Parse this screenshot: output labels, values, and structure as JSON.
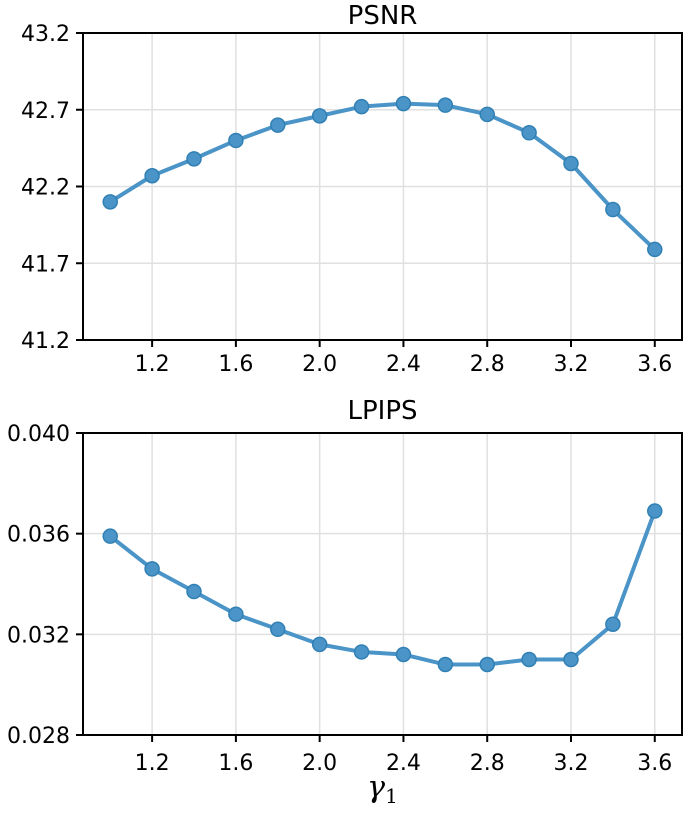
{
  "style": {
    "line_color": "#4a94c8",
    "marker_edge_color": "#3180b4",
    "grid_color": "#e0e0e0",
    "axis_color": "#000000",
    "text_color": "#000000",
    "background": "#ffffff"
  },
  "chart_data": [
    {
      "type": "line",
      "title": "PSNR",
      "x": [
        1.0,
        1.2,
        1.4,
        1.6,
        1.8,
        2.0,
        2.2,
        2.4,
        2.6,
        2.8,
        3.0,
        3.2,
        3.4,
        3.6
      ],
      "values": [
        42.1,
        42.27,
        42.38,
        42.5,
        42.6,
        42.66,
        42.72,
        42.74,
        42.73,
        42.67,
        42.55,
        42.35,
        42.05,
        41.79
      ],
      "xlabel": "",
      "ylabel": "",
      "xlim": [
        0.87,
        3.73
      ],
      "ylim": [
        41.2,
        43.2
      ],
      "xtick_values": [
        1.2,
        1.6,
        2.0,
        2.4,
        2.8,
        3.2,
        3.6
      ],
      "xtick_labels": [
        "1.2",
        "1.6",
        "2.0",
        "2.4",
        "2.8",
        "3.2",
        "3.6"
      ],
      "ytick_values": [
        41.2,
        41.7,
        42.2,
        42.7,
        43.2
      ],
      "ytick_labels": [
        "41.2",
        "41.7",
        "42.2",
        "42.7",
        "43.2"
      ],
      "grid": true,
      "legend": "none",
      "marker": "circle"
    },
    {
      "type": "line",
      "title": "LPIPS",
      "x": [
        1.0,
        1.2,
        1.4,
        1.6,
        1.8,
        2.0,
        2.2,
        2.4,
        2.6,
        2.8,
        3.0,
        3.2,
        3.4,
        3.6
      ],
      "values": [
        0.0359,
        0.0346,
        0.0337,
        0.0328,
        0.0322,
        0.0316,
        0.0313,
        0.0312,
        0.0308,
        0.0308,
        0.031,
        0.031,
        0.0324,
        0.0369
      ],
      "xlabel_symbol": "γ",
      "xlabel_subscript": "1",
      "ylabel": "",
      "xlim": [
        0.87,
        3.73
      ],
      "ylim": [
        0.028,
        0.04
      ],
      "xtick_values": [
        1.2,
        1.6,
        2.0,
        2.4,
        2.8,
        3.2,
        3.6
      ],
      "xtick_labels": [
        "1.2",
        "1.6",
        "2.0",
        "2.4",
        "2.8",
        "3.2",
        "3.6"
      ],
      "ytick_values": [
        0.028,
        0.032,
        0.036,
        0.04
      ],
      "ytick_labels": [
        "0.028",
        "0.032",
        "0.036",
        "0.040"
      ],
      "grid": true,
      "legend": "none",
      "marker": "circle"
    }
  ]
}
